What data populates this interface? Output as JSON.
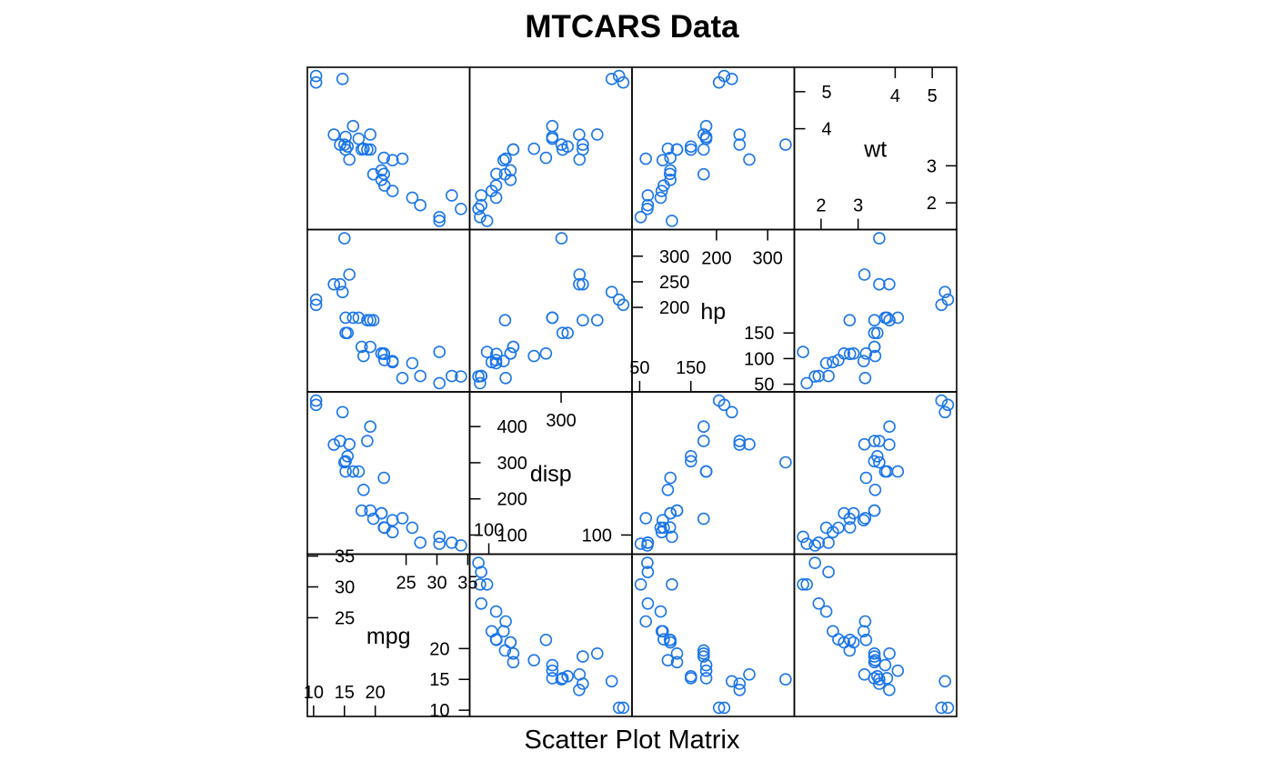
{
  "chart_data": {
    "type": "scatter",
    "title": "MTCARS Data",
    "xlabel": "Scatter Plot Matrix",
    "point_color": "#1a75e8",
    "variables": [
      {
        "name": "mpg",
        "label": "mpg",
        "range": [
          10.4,
          33.9
        ],
        "low_ticks": [
          "10",
          "15",
          "20"
        ],
        "high_ticks": [
          "25",
          "30",
          "35"
        ],
        "low_values": [
          10,
          15,
          20
        ],
        "high_values": [
          25,
          30,
          35
        ]
      },
      {
        "name": "disp",
        "label": "disp",
        "range": [
          71.1,
          472
        ],
        "low_ticks": [
          "100"
        ],
        "high_ticks": [
          "100",
          "200",
          "300",
          "400"
        ],
        "low_values": [
          100
        ],
        "high_values": [
          100,
          200,
          300,
          400
        ],
        "alt_high_ticks": [
          "300"
        ],
        "alt_high_values": [
          300
        ]
      },
      {
        "name": "hp",
        "label": "hp",
        "range": [
          52,
          335
        ],
        "low_ticks": [
          "50",
          "100",
          "150"
        ],
        "high_ticks": [
          "200",
          "250",
          "300"
        ],
        "low_values": [
          50,
          100,
          150
        ],
        "high_values": [
          200,
          250,
          300
        ],
        "alt_low_ticks": [
          "50",
          "150"
        ],
        "alt_low_values": [
          50,
          150
        ],
        "alt_high_ticks": [
          "200",
          "300"
        ],
        "alt_high_values": [
          200,
          300
        ]
      },
      {
        "name": "wt",
        "label": "wt",
        "range": [
          1.513,
          5.424
        ],
        "low_ticks": [
          "2",
          "3"
        ],
        "high_ticks": [
          "4",
          "5"
        ],
        "low_values": [
          2,
          3
        ],
        "high_values": [
          4,
          5
        ]
      }
    ],
    "records": [
      {
        "mpg": 21.0,
        "disp": 160,
        "hp": 110,
        "wt": 2.62
      },
      {
        "mpg": 21.0,
        "disp": 160,
        "hp": 110,
        "wt": 2.875
      },
      {
        "mpg": 22.8,
        "disp": 108,
        "hp": 93,
        "wt": 2.32
      },
      {
        "mpg": 21.4,
        "disp": 258,
        "hp": 110,
        "wt": 3.215
      },
      {
        "mpg": 18.7,
        "disp": 360,
        "hp": 175,
        "wt": 3.44
      },
      {
        "mpg": 18.1,
        "disp": 225,
        "hp": 105,
        "wt": 3.46
      },
      {
        "mpg": 14.3,
        "disp": 360,
        "hp": 245,
        "wt": 3.57
      },
      {
        "mpg": 24.4,
        "disp": 146.7,
        "hp": 62,
        "wt": 3.19
      },
      {
        "mpg": 22.8,
        "disp": 140.8,
        "hp": 95,
        "wt": 3.15
      },
      {
        "mpg": 19.2,
        "disp": 167.6,
        "hp": 123,
        "wt": 3.44
      },
      {
        "mpg": 17.8,
        "disp": 167.6,
        "hp": 123,
        "wt": 3.44
      },
      {
        "mpg": 16.4,
        "disp": 275.8,
        "hp": 180,
        "wt": 4.07
      },
      {
        "mpg": 17.3,
        "disp": 275.8,
        "hp": 180,
        "wt": 3.73
      },
      {
        "mpg": 15.2,
        "disp": 275.8,
        "hp": 180,
        "wt": 3.78
      },
      {
        "mpg": 10.4,
        "disp": 472,
        "hp": 205,
        "wt": 5.25
      },
      {
        "mpg": 10.4,
        "disp": 460,
        "hp": 215,
        "wt": 5.424
      },
      {
        "mpg": 14.7,
        "disp": 440,
        "hp": 230,
        "wt": 5.345
      },
      {
        "mpg": 32.4,
        "disp": 78.7,
        "hp": 66,
        "wt": 2.2
      },
      {
        "mpg": 30.4,
        "disp": 75.7,
        "hp": 52,
        "wt": 1.615
      },
      {
        "mpg": 33.9,
        "disp": 71.1,
        "hp": 65,
        "wt": 1.835
      },
      {
        "mpg": 21.5,
        "disp": 120.1,
        "hp": 97,
        "wt": 2.465
      },
      {
        "mpg": 15.5,
        "disp": 318,
        "hp": 150,
        "wt": 3.52
      },
      {
        "mpg": 15.2,
        "disp": 304,
        "hp": 150,
        "wt": 3.435
      },
      {
        "mpg": 13.3,
        "disp": 350,
        "hp": 245,
        "wt": 3.84
      },
      {
        "mpg": 19.2,
        "disp": 400,
        "hp": 175,
        "wt": 3.845
      },
      {
        "mpg": 27.3,
        "disp": 79,
        "hp": 66,
        "wt": 1.935
      },
      {
        "mpg": 26.0,
        "disp": 120.3,
        "hp": 91,
        "wt": 2.14
      },
      {
        "mpg": 30.4,
        "disp": 95.1,
        "hp": 113,
        "wt": 1.513
      },
      {
        "mpg": 15.8,
        "disp": 351,
        "hp": 264,
        "wt": 3.17
      },
      {
        "mpg": 19.7,
        "disp": 145,
        "hp": 175,
        "wt": 2.77
      },
      {
        "mpg": 15.0,
        "disp": 301,
        "hp": 335,
        "wt": 3.57
      },
      {
        "mpg": 21.4,
        "disp": 121,
        "hp": 109,
        "wt": 2.78
      }
    ]
  }
}
